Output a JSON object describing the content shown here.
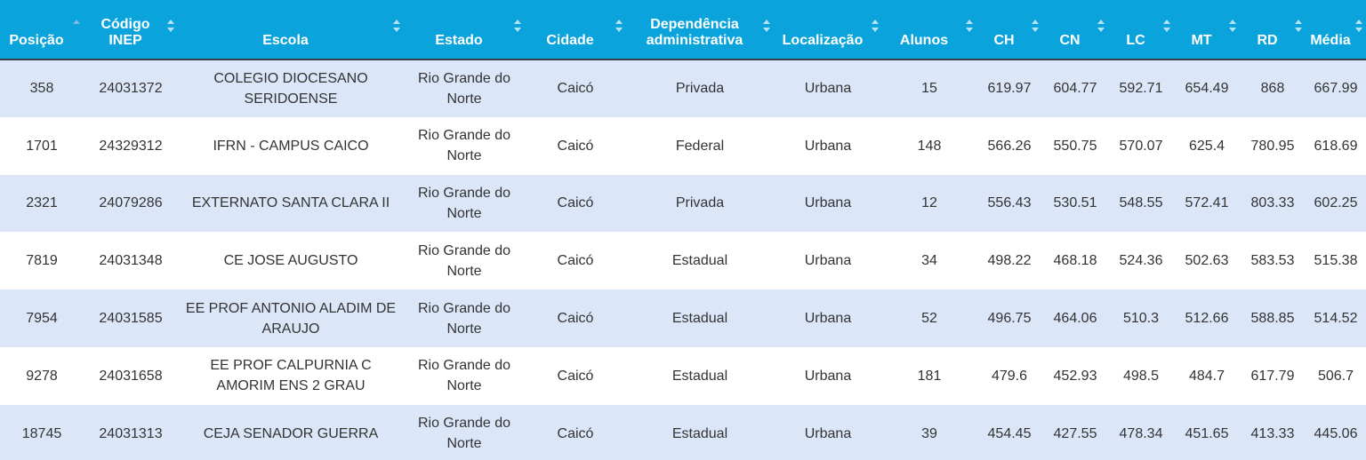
{
  "columns": [
    {
      "key": "posicao",
      "label": "Posição",
      "sort": "asc"
    },
    {
      "key": "codigo",
      "label": "Código INEP",
      "sort": "none"
    },
    {
      "key": "escola",
      "label": "Escola",
      "sort": "none"
    },
    {
      "key": "estado",
      "label": "Estado",
      "sort": "none"
    },
    {
      "key": "cidade",
      "label": "Cidade",
      "sort": "none"
    },
    {
      "key": "dependencia",
      "label": "Dependência administrativa",
      "sort": "none"
    },
    {
      "key": "localizacao",
      "label": "Localização",
      "sort": "none"
    },
    {
      "key": "alunos",
      "label": "Alunos",
      "sort": "none"
    },
    {
      "key": "ch",
      "label": "CH",
      "sort": "none"
    },
    {
      "key": "cn",
      "label": "CN",
      "sort": "none"
    },
    {
      "key": "lc",
      "label": "LC",
      "sort": "none"
    },
    {
      "key": "mt",
      "label": "MT",
      "sort": "none"
    },
    {
      "key": "rd",
      "label": "RD",
      "sort": "none"
    },
    {
      "key": "media",
      "label": "Média",
      "sort": "none"
    }
  ],
  "rows": [
    {
      "posicao": "358",
      "codigo": "24031372",
      "escola": "COLEGIO DIOCESANO SERIDOENSE",
      "estado": "Rio Grande do Norte",
      "cidade": "Caicó",
      "dependencia": "Privada",
      "localizacao": "Urbana",
      "alunos": "15",
      "ch": "619.97",
      "cn": "604.77",
      "lc": "592.71",
      "mt": "654.49",
      "rd": "868",
      "media": "667.99"
    },
    {
      "posicao": "1701",
      "codigo": "24329312",
      "escola": "IFRN - CAMPUS CAICO",
      "estado": "Rio Grande do Norte",
      "cidade": "Caicó",
      "dependencia": "Federal",
      "localizacao": "Urbana",
      "alunos": "148",
      "ch": "566.26",
      "cn": "550.75",
      "lc": "570.07",
      "mt": "625.4",
      "rd": "780.95",
      "media": "618.69"
    },
    {
      "posicao": "2321",
      "codigo": "24079286",
      "escola": "EXTERNATO SANTA CLARA II",
      "estado": "Rio Grande do Norte",
      "cidade": "Caicó",
      "dependencia": "Privada",
      "localizacao": "Urbana",
      "alunos": "12",
      "ch": "556.43",
      "cn": "530.51",
      "lc": "548.55",
      "mt": "572.41",
      "rd": "803.33",
      "media": "602.25"
    },
    {
      "posicao": "7819",
      "codigo": "24031348",
      "escola": "CE JOSE AUGUSTO",
      "estado": "Rio Grande do Norte",
      "cidade": "Caicó",
      "dependencia": "Estadual",
      "localizacao": "Urbana",
      "alunos": "34",
      "ch": "498.22",
      "cn": "468.18",
      "lc": "524.36",
      "mt": "502.63",
      "rd": "583.53",
      "media": "515.38"
    },
    {
      "posicao": "7954",
      "codigo": "24031585",
      "escola": "EE PROF ANTONIO ALADIM DE ARAUJO",
      "estado": "Rio Grande do Norte",
      "cidade": "Caicó",
      "dependencia": "Estadual",
      "localizacao": "Urbana",
      "alunos": "52",
      "ch": "496.75",
      "cn": "464.06",
      "lc": "510.3",
      "mt": "512.66",
      "rd": "588.85",
      "media": "514.52"
    },
    {
      "posicao": "9278",
      "codigo": "24031658",
      "escola": "EE PROF CALPURNIA C AMORIM ENS 2 GRAU",
      "estado": "Rio Grande do Norte",
      "cidade": "Caicó",
      "dependencia": "Estadual",
      "localizacao": "Urbana",
      "alunos": "181",
      "ch": "479.6",
      "cn": "452.93",
      "lc": "498.5",
      "mt": "484.7",
      "rd": "617.79",
      "media": "506.7"
    },
    {
      "posicao": "18745",
      "codigo": "24031313",
      "escola": "CEJA SENADOR GUERRA",
      "estado": "Rio Grande do Norte",
      "cidade": "Caicó",
      "dependencia": "Estadual",
      "localizacao": "Urbana",
      "alunos": "39",
      "ch": "454.45",
      "cn": "427.55",
      "lc": "478.34",
      "mt": "451.65",
      "rd": "413.33",
      "media": "445.06"
    }
  ]
}
